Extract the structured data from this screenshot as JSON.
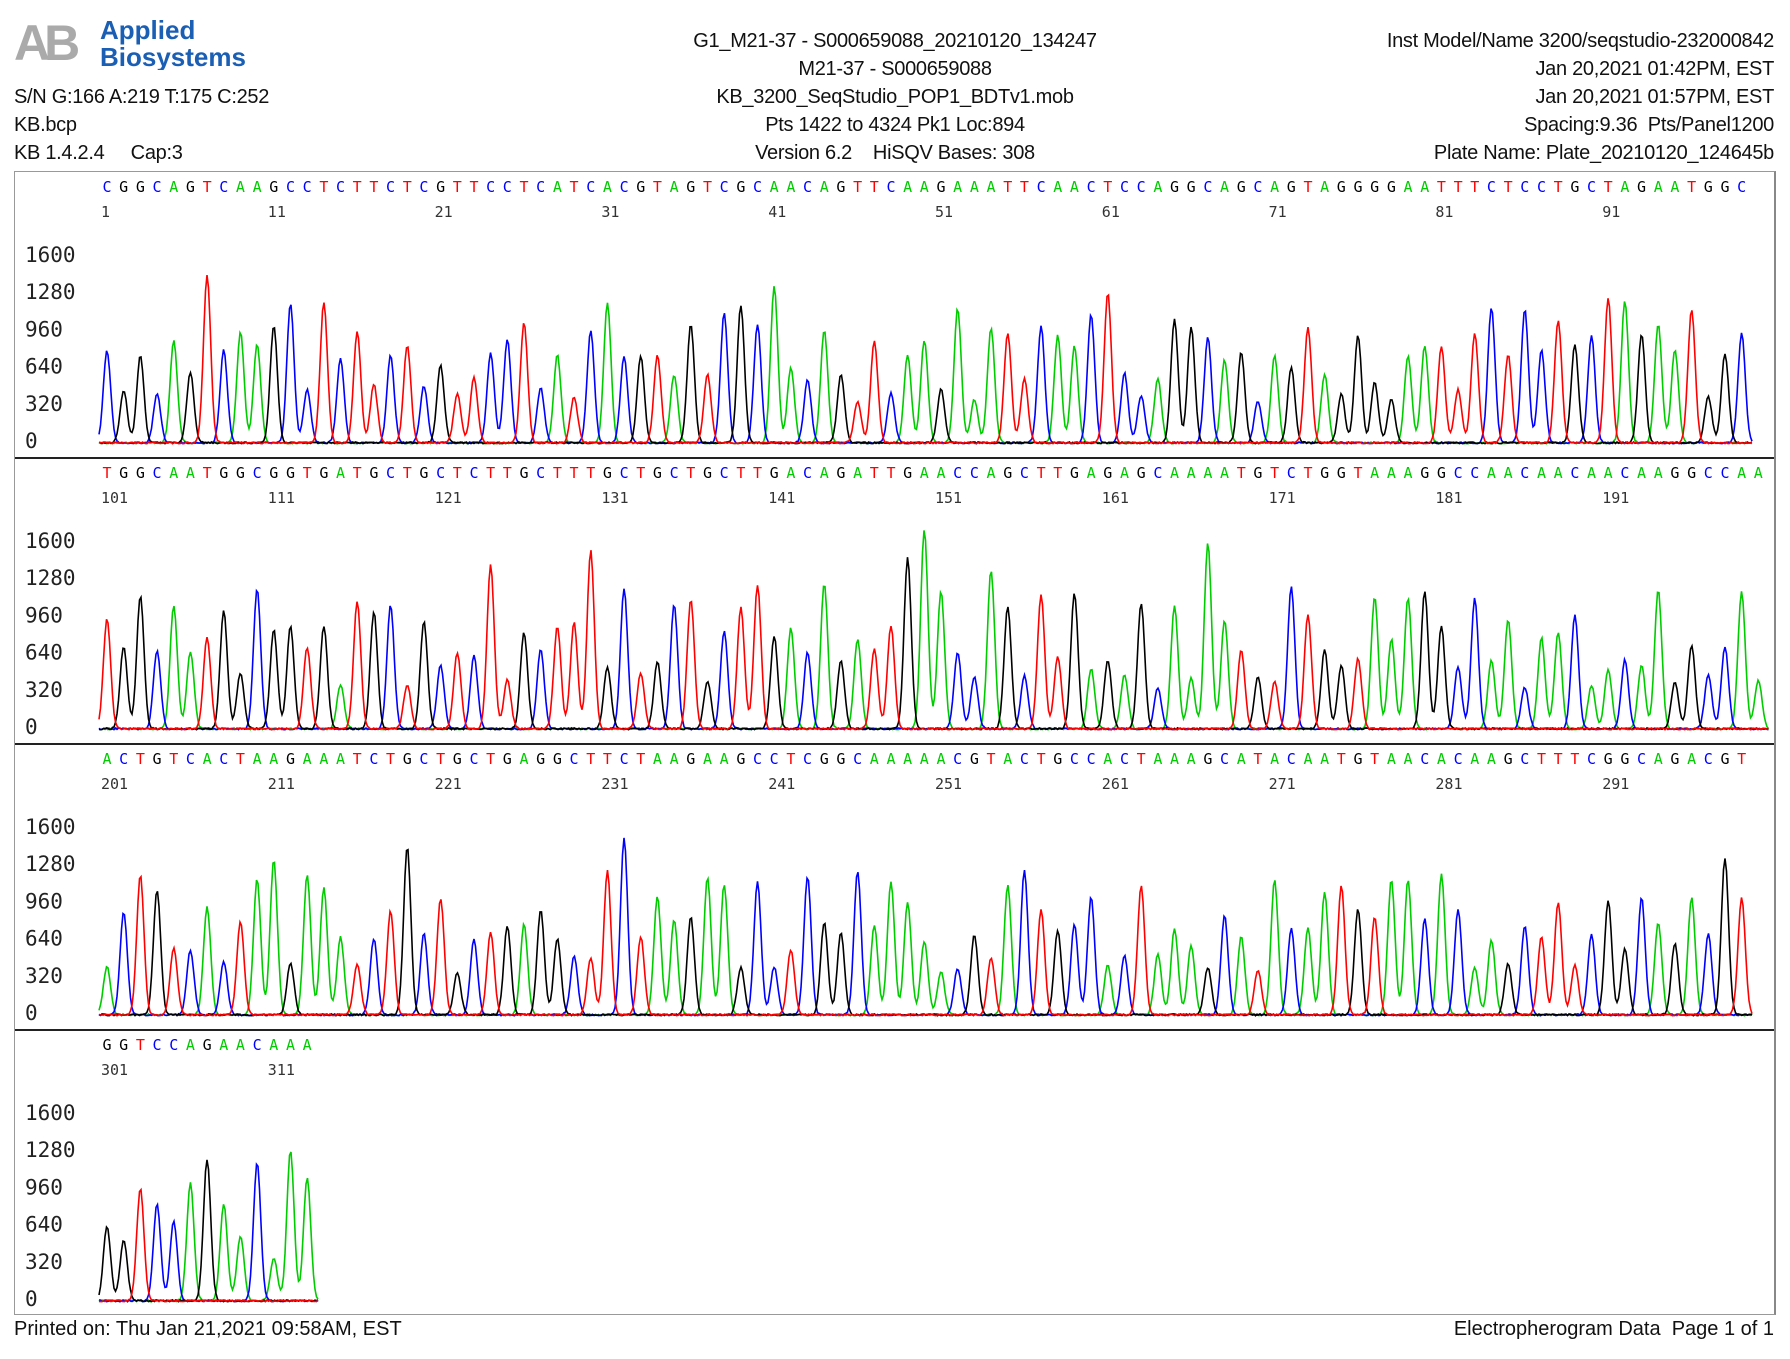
{
  "logo": {
    "mark": "AB",
    "line1": "Applied",
    "line2": "Biosystems"
  },
  "header": {
    "left": [
      "S/N G:166 A:219 T:175 C:252",
      "KB.bcp",
      "KB 1.4.2.4     Cap:3"
    ],
    "center": [
      "G1_M21-37 - S000659088_20210120_134247",
      "M21-37 - S000659088",
      "KB_3200_SeqStudio_POP1_BDTv1.mob",
      "Pts 1422 to 4324 Pk1 Loc:894",
      "Version 6.2    HiSQV Bases: 308"
    ],
    "right": [
      "Inst Model/Name 3200/seqstudio-232000842",
      "Jan 20,2021 01:42PM, EST",
      "Jan 20,2021 01:57PM, EST",
      "Spacing:9.36  Pts/Panel1200",
      "Plate Name: Plate_20210120_124645b"
    ]
  },
  "chart_data": {
    "type": "line",
    "title": "",
    "y_ticks": [
      0,
      320,
      640,
      960,
      1280,
      1600
    ],
    "ylim": [
      0,
      1700
    ],
    "base_colors": {
      "A": "#00cc00",
      "C": "#0000ff",
      "G": "#000000",
      "T": "#ff0000"
    },
    "panels": [
      {
        "start": 1,
        "sequence": "CGGCAGTCAAGCCTCTTCTCGTTCCTCATCACGTAGTCGCAACAGTTCAAGAAATTCAACTCCAGGCAGCAGTAGGGGAATTTCTCCTGCTAGAATGGC",
        "position_labels": [
          "1",
          "11",
          "21",
          "31",
          "41",
          "51",
          "61",
          "71",
          "81",
          "91"
        ]
      },
      {
        "start": 101,
        "sequence": "TGGCAATGGCGGTGATGCTGCTCTTGCTTTGCTGCTGCTTGACAGATTGAACCAGCTTGAGAGCAAAATGTCTGGTAAAGGCCAACAACAACAAGGCCAA",
        "position_labels": [
          "101",
          "111",
          "121",
          "131",
          "141",
          "151",
          "161",
          "171",
          "181",
          "191"
        ]
      },
      {
        "start": 201,
        "sequence": "ACTGTCACTAAGAAATCTGCTGCTGAGGCTTCTAAGAAGCCTCGGCAAAAACGTACTGCCACTAAAGCATACAATGTAACACAAGCTTTCGGCAGACGT",
        "position_labels": [
          "201",
          "211",
          "221",
          "231",
          "241",
          "251",
          "261",
          "271",
          "281",
          "291"
        ]
      },
      {
        "start": 301,
        "sequence": "GGTCCAGAACAAA",
        "position_labels": [
          "301",
          "311"
        ]
      }
    ]
  },
  "footer": {
    "printed": "Printed on: Thu Jan 21,2021 09:58AM, EST",
    "page": "Electropherogram Data  Page 1 of 1"
  }
}
